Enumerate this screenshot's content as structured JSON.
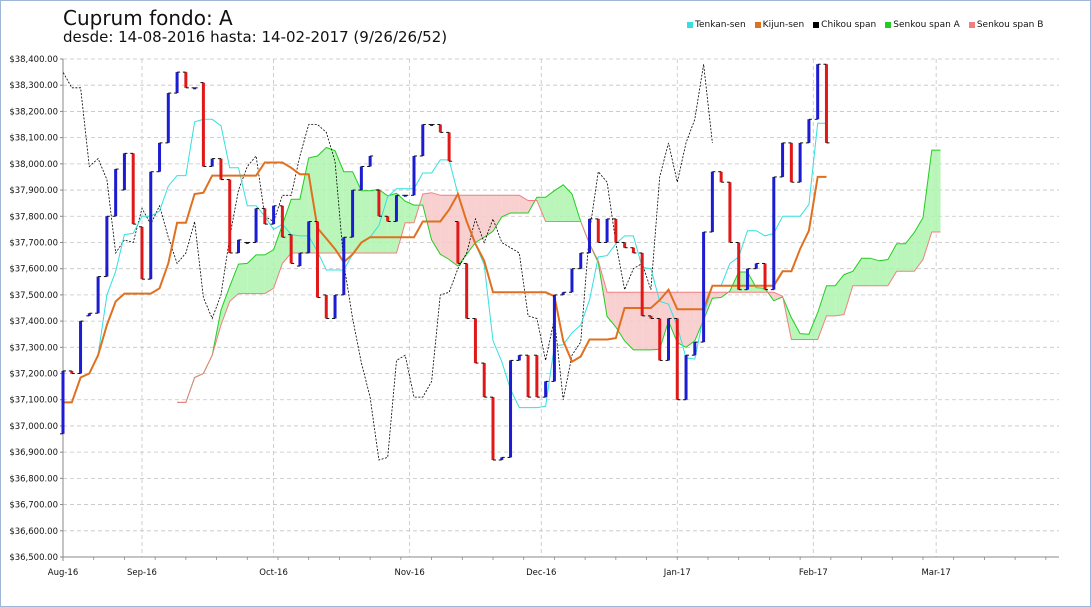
{
  "title": "Cuprum fondo: A",
  "subtitle": "desde: 14-08-2016 hasta: 14-02-2017 (9/26/26/52)",
  "legend": [
    {
      "name": "Tenkan-sen",
      "color": "#33e0e0"
    },
    {
      "name": "Kijun-sen",
      "color": "#e07020"
    },
    {
      "name": "Chikou span",
      "color": "#000000"
    },
    {
      "name": "Senkou span A",
      "color": "#22cc22"
    },
    {
      "name": "Senkou span B",
      "color": "#f08080"
    }
  ],
  "chart_data": {
    "type": "ichimoku-candlestick",
    "x_range": [
      "2016-08-14",
      "2017-03-29"
    ],
    "ylim": [
      36500,
      38400
    ],
    "y_ticks": [
      36500,
      36600,
      36700,
      36800,
      36900,
      37000,
      37100,
      37200,
      37300,
      37400,
      37500,
      37600,
      37700,
      37800,
      37900,
      38000,
      38100,
      38200,
      38300,
      38400
    ],
    "y_tick_labels": [
      "$36,500.00",
      "$36,600.00",
      "$36,700.00",
      "$36,800.00",
      "$36,900.00",
      "$37,000.00",
      "$37,100.00",
      "$37,200.00",
      "$37,300.00",
      "$37,400.00",
      "$37,500.00",
      "$37,600.00",
      "$37,700.00",
      "$37,800.00",
      "$37,900.00",
      "$38,000.00",
      "$38,100.00",
      "$38,200.00",
      "$38,300.00",
      "$38,400.00"
    ],
    "x_ticks": [
      {
        "label": "Aug-16",
        "date": "2016-08-14"
      },
      {
        "label": "Sep-16",
        "date": "2016-09-01"
      },
      {
        "label": "Oct-16",
        "date": "2016-10-01"
      },
      {
        "label": "Nov-16",
        "date": "2016-11-01"
      },
      {
        "label": "Dec-16",
        "date": "2016-12-01"
      },
      {
        "label": "Jan-17",
        "date": "2017-01-01"
      },
      {
        "label": "Feb-17",
        "date": "2017-02-01"
      },
      {
        "label": "Mar-17",
        "date": "2017-03-01"
      }
    ],
    "grid": true,
    "legend_position": "top-right",
    "candles": [
      {
        "d": "2016-08-14",
        "o": 36970,
        "c": 37210
      },
      {
        "d": "2016-08-16",
        "o": 37210,
        "c": 37200
      },
      {
        "d": "2016-08-18",
        "o": 37200,
        "c": 37400
      },
      {
        "d": "2016-08-20",
        "o": 37420,
        "c": 37430
      },
      {
        "d": "2016-08-22",
        "o": 37430,
        "c": 37570
      },
      {
        "d": "2016-08-24",
        "o": 37570,
        "c": 37800
      },
      {
        "d": "2016-08-26",
        "o": 37800,
        "c": 37980
      },
      {
        "d": "2016-08-28",
        "o": 37900,
        "c": 38040
      },
      {
        "d": "2016-08-30",
        "o": 38040,
        "c": 37770
      },
      {
        "d": "2016-09-01",
        "o": 37760,
        "c": 37560
      },
      {
        "d": "2016-09-03",
        "o": 37560,
        "c": 37970
      },
      {
        "d": "2016-09-05",
        "o": 37970,
        "c": 38080
      },
      {
        "d": "2016-09-07",
        "o": 38080,
        "c": 38270
      },
      {
        "d": "2016-09-09",
        "o": 38270,
        "c": 38350
      },
      {
        "d": "2016-09-11",
        "o": 38350,
        "c": 38290
      },
      {
        "d": "2016-09-13",
        "o": 38290,
        "c": 38290
      },
      {
        "d": "2016-09-15",
        "o": 38310,
        "c": 37990
      },
      {
        "d": "2016-09-17",
        "o": 37990,
        "c": 38020
      },
      {
        "d": "2016-09-19",
        "o": 38020,
        "c": 37940
      },
      {
        "d": "2016-09-21",
        "o": 37940,
        "c": 37660
      },
      {
        "d": "2016-09-23",
        "o": 37660,
        "c": 37710
      },
      {
        "d": "2016-09-25",
        "o": 37700,
        "c": 37700
      },
      {
        "d": "2016-09-27",
        "o": 37700,
        "c": 37830
      },
      {
        "d": "2016-09-29",
        "o": 37830,
        "c": 37770
      },
      {
        "d": "2016-10-01",
        "o": 37770,
        "c": 37840
      },
      {
        "d": "2016-10-03",
        "o": 37840,
        "c": 37720
      },
      {
        "d": "2016-10-05",
        "o": 37730,
        "c": 37620
      },
      {
        "d": "2016-10-07",
        "o": 37610,
        "c": 37660
      },
      {
        "d": "2016-10-09",
        "o": 37660,
        "c": 37780
      },
      {
        "d": "2016-10-11",
        "o": 37780,
        "c": 37490
      },
      {
        "d": "2016-10-13",
        "o": 37500,
        "c": 37410
      },
      {
        "d": "2016-10-15",
        "o": 37410,
        "c": 37500
      },
      {
        "d": "2016-10-17",
        "o": 37500,
        "c": 37720
      },
      {
        "d": "2016-10-19",
        "o": 37720,
        "c": 37900
      },
      {
        "d": "2016-10-21",
        "o": 37900,
        "c": 37990
      },
      {
        "d": "2016-10-23",
        "o": 37990,
        "c": 38030
      },
      {
        "d": "2016-10-25",
        "o": 37900,
        "c": 37800
      },
      {
        "d": "2016-10-27",
        "o": 37800,
        "c": 37780
      },
      {
        "d": "2016-10-29",
        "o": 37780,
        "c": 37880
      },
      {
        "d": "2016-10-31",
        "o": 37880,
        "c": 37880
      },
      {
        "d": "2016-11-02",
        "o": 37880,
        "c": 38030
      },
      {
        "d": "2016-11-04",
        "o": 38030,
        "c": 38150
      },
      {
        "d": "2016-11-06",
        "o": 38150,
        "c": 38150
      },
      {
        "d": "2016-11-08",
        "o": 38150,
        "c": 38120
      },
      {
        "d": "2016-11-10",
        "o": 38120,
        "c": 38010
      },
      {
        "d": "2016-11-12",
        "o": 37780,
        "c": 37620
      },
      {
        "d": "2016-11-14",
        "o": 37620,
        "c": 37410
      },
      {
        "d": "2016-11-16",
        "o": 37410,
        "c": 37240
      },
      {
        "d": "2016-11-18",
        "o": 37240,
        "c": 37110
      },
      {
        "d": "2016-11-20",
        "o": 37110,
        "c": 36870
      },
      {
        "d": "2016-11-22",
        "o": 36870,
        "c": 36880
      },
      {
        "d": "2016-11-24",
        "o": 36880,
        "c": 37250
      },
      {
        "d": "2016-11-26",
        "o": 37250,
        "c": 37270
      },
      {
        "d": "2016-11-28",
        "o": 37270,
        "c": 37110
      },
      {
        "d": "2016-11-30",
        "o": 37270,
        "c": 37110
      },
      {
        "d": "2016-12-02",
        "o": 37110,
        "c": 37170
      },
      {
        "d": "2016-12-04",
        "o": 37170,
        "c": 37500
      },
      {
        "d": "2016-12-06",
        "o": 37500,
        "c": 37510
      },
      {
        "d": "2016-12-08",
        "o": 37510,
        "c": 37600
      },
      {
        "d": "2016-12-10",
        "o": 37600,
        "c": 37660
      },
      {
        "d": "2016-12-12",
        "o": 37660,
        "c": 37790
      },
      {
        "d": "2016-12-14",
        "o": 37790,
        "c": 37700
      },
      {
        "d": "2016-12-16",
        "o": 37700,
        "c": 37790
      },
      {
        "d": "2016-12-18",
        "o": 37790,
        "c": 37700
      },
      {
        "d": "2016-12-20",
        "o": 37700,
        "c": 37680
      },
      {
        "d": "2016-12-22",
        "o": 37680,
        "c": 37660
      },
      {
        "d": "2016-12-24",
        "o": 37660,
        "c": 37420
      },
      {
        "d": "2016-12-26",
        "o": 37420,
        "c": 37410
      },
      {
        "d": "2016-12-28",
        "o": 37410,
        "c": 37250
      },
      {
        "d": "2016-12-30",
        "o": 37250,
        "c": 37410
      },
      {
        "d": "2017-01-01",
        "o": 37410,
        "c": 37100
      },
      {
        "d": "2017-01-03",
        "o": 37100,
        "c": 37270
      },
      {
        "d": "2017-01-05",
        "o": 37270,
        "c": 37320
      },
      {
        "d": "2017-01-07",
        "o": 37320,
        "c": 37740
      },
      {
        "d": "2017-01-09",
        "o": 37740,
        "c": 37970
      },
      {
        "d": "2017-01-11",
        "o": 37970,
        "c": 37930
      },
      {
        "d": "2017-01-13",
        "o": 37930,
        "c": 37700
      },
      {
        "d": "2017-01-15",
        "o": 37700,
        "c": 37520
      },
      {
        "d": "2017-01-17",
        "o": 37520,
        "c": 37600
      },
      {
        "d": "2017-01-19",
        "o": 37600,
        "c": 37620
      },
      {
        "d": "2017-01-21",
        "o": 37620,
        "c": 37520
      },
      {
        "d": "2017-01-23",
        "o": 37520,
        "c": 37950
      },
      {
        "d": "2017-01-25",
        "o": 37950,
        "c": 38080
      },
      {
        "d": "2017-01-27",
        "o": 38080,
        "c": 37930
      },
      {
        "d": "2017-01-29",
        "o": 37930,
        "c": 38080
      },
      {
        "d": "2017-01-31",
        "o": 38080,
        "c": 38170
      },
      {
        "d": "2017-02-02",
        "o": 38170,
        "c": 38380
      },
      {
        "d": "2017-02-04",
        "o": 38380,
        "c": 38080
      }
    ],
    "series": [
      {
        "name": "Tenkan-sen",
        "color": "#33e0e0"
      },
      {
        "name": "Kijun-sen",
        "color": "#e07020"
      },
      {
        "name": "Chikou span",
        "color": "#000000"
      },
      {
        "name": "Senkou span A",
        "color": "#22cc22"
      },
      {
        "name": "Senkou span B",
        "color": "#f08080"
      }
    ]
  }
}
